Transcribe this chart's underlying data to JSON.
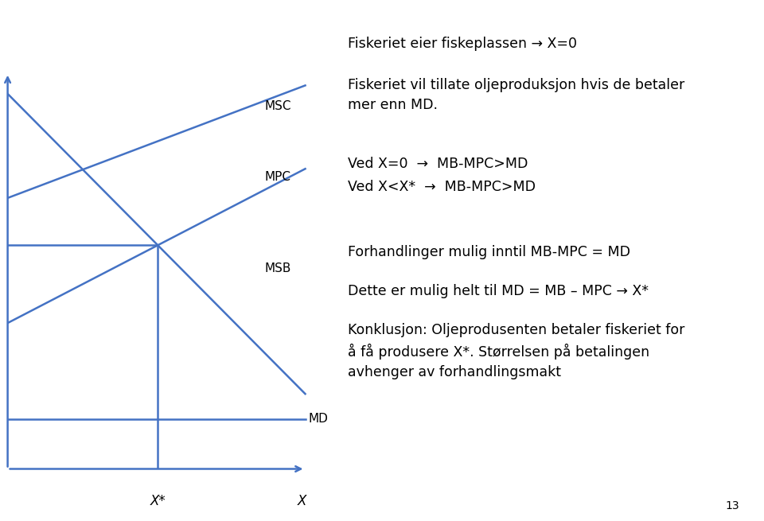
{
  "bg_color": "#ffffff",
  "line_color": "#4472c4",
  "text_color": "#000000",
  "graph": {
    "x_min": 0,
    "x_max": 10,
    "y_min": 0,
    "y_max": 10,
    "x_star": 3.0,
    "msc_y0": 9.5,
    "msc_y1": 9.0,
    "mpc_y0": 4.5,
    "mpc_y1": 7.5,
    "msb_y0": 8.5,
    "msb_y1": 1.5,
    "md_level": 1.2,
    "x_end": 9.5,
    "y_end": 9.5
  },
  "labels": {
    "MSC_x": 8.2,
    "MSC_y": 8.7,
    "MPC_x": 8.2,
    "MPC_y": 7.0,
    "MSB_x": 8.2,
    "MSB_y": 4.8,
    "MD_x": 9.6,
    "MD_y": 1.2,
    "Xstar_x": 3.0,
    "X_x": 9.5
  },
  "right_text": {
    "line1": "Fiskeriet eier fiskeplassen → X=0",
    "line2": "Fiskeriet vil tillate oljeproduksjon hvis de betaler\nmer enn MD.",
    "line3_a": "Ved X=0  →  MB-MPC>MD",
    "line3_b": "Ved X<X*  →  MB-MPC>MD",
    "line4": "Forhandlinger mulig inntil MB-MPC = MD",
    "line5": "Dette er mulig helt til MD = MB – MPC → X*",
    "line6": "Konklusjon: Oljeprodusenten betaler fiskeriet for\nå få produsere X*. Størrelsen på betalingen\navhenger av forhandlingsmakt",
    "page_num": "13"
  }
}
